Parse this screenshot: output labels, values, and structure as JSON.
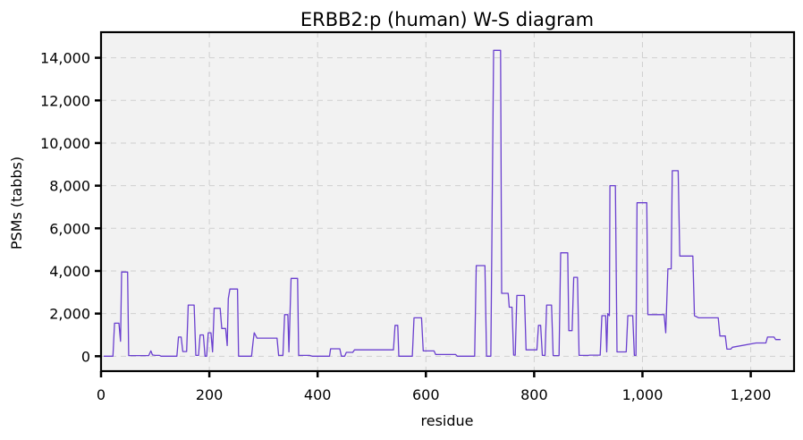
{
  "chart_data": {
    "type": "line",
    "title": "ERBB2:p (human) W-S diagram",
    "xlabel": "residue",
    "ylabel": "PSMs (tabbs)",
    "xlim": [
      0,
      1280
    ],
    "ylim": [
      -700,
      15200
    ],
    "grid": true,
    "legend": "none",
    "colors": {
      "series": "#6a3fcf",
      "grid": "#cfcfcf",
      "plot_bg": "#f2f2f2"
    },
    "x_ticks": [
      0,
      200,
      400,
      600,
      800,
      1000,
      1200
    ],
    "x_tick_labels": [
      "0",
      "200",
      "400",
      "600",
      "800",
      "1,000",
      "1,200"
    ],
    "y_ticks": [
      0,
      2000,
      4000,
      6000,
      8000,
      10000,
      12000,
      14000
    ],
    "y_tick_labels": [
      "0",
      "2,000",
      "4,000",
      "6,000",
      "8,000",
      "10,000",
      "12,000",
      "14,000"
    ],
    "series": [
      {
        "color": "#6a3fcf",
        "points": [
          [
            5,
            0
          ],
          [
            22,
            0
          ],
          [
            25,
            1550
          ],
          [
            33,
            1550
          ],
          [
            36,
            700
          ],
          [
            38,
            3950
          ],
          [
            49,
            3950
          ],
          [
            51,
            30
          ],
          [
            88,
            30
          ],
          [
            92,
            250
          ],
          [
            95,
            60
          ],
          [
            100,
            40
          ],
          [
            108,
            40
          ],
          [
            111,
            0
          ],
          [
            140,
            0
          ],
          [
            143,
            900
          ],
          [
            148,
            900
          ],
          [
            151,
            220
          ],
          [
            158,
            220
          ],
          [
            161,
            2400
          ],
          [
            172,
            2400
          ],
          [
            175,
            40
          ],
          [
            180,
            40
          ],
          [
            183,
            1000
          ],
          [
            189,
            1000
          ],
          [
            192,
            0
          ],
          [
            195,
            0
          ],
          [
            198,
            1100
          ],
          [
            203,
            1100
          ],
          [
            206,
            200
          ],
          [
            209,
            2250
          ],
          [
            220,
            2250
          ],
          [
            223,
            1300
          ],
          [
            230,
            1300
          ],
          [
            233,
            500
          ],
          [
            235,
            2700
          ],
          [
            238,
            3150
          ],
          [
            252,
            3150
          ],
          [
            254,
            0
          ],
          [
            278,
            0
          ],
          [
            281,
            700
          ],
          [
            283,
            1100
          ],
          [
            288,
            850
          ],
          [
            325,
            850
          ],
          [
            328,
            40
          ],
          [
            336,
            40
          ],
          [
            339,
            1950
          ],
          [
            345,
            1950
          ],
          [
            347,
            200
          ],
          [
            351,
            3650
          ],
          [
            363,
            3650
          ],
          [
            365,
            40
          ],
          [
            385,
            40
          ],
          [
            390,
            0
          ],
          [
            422,
            0
          ],
          [
            424,
            350
          ],
          [
            441,
            350
          ],
          [
            444,
            0
          ],
          [
            450,
            0
          ],
          [
            453,
            180
          ],
          [
            465,
            180
          ],
          [
            468,
            300
          ],
          [
            540,
            300
          ],
          [
            543,
            1450
          ],
          [
            548,
            1450
          ],
          [
            550,
            0
          ],
          [
            575,
            0
          ],
          [
            578,
            1800
          ],
          [
            592,
            1800
          ],
          [
            595,
            250
          ],
          [
            615,
            250
          ],
          [
            618,
            80
          ],
          [
            655,
            80
          ],
          [
            658,
            0
          ],
          [
            690,
            0
          ],
          [
            693,
            4250
          ],
          [
            709,
            4250
          ],
          [
            712,
            0
          ],
          [
            720,
            0
          ],
          [
            725,
            14350
          ],
          [
            738,
            14350
          ],
          [
            740,
            2950
          ],
          [
            752,
            2950
          ],
          [
            754,
            2300
          ],
          [
            759,
            2300
          ],
          [
            762,
            50
          ],
          [
            765,
            50
          ],
          [
            768,
            2850
          ],
          [
            782,
            2850
          ],
          [
            785,
            300
          ],
          [
            805,
            300
          ],
          [
            808,
            1450
          ],
          [
            812,
            1450
          ],
          [
            815,
            40
          ],
          [
            820,
            40
          ],
          [
            823,
            2400
          ],
          [
            832,
            2400
          ],
          [
            835,
            30
          ],
          [
            846,
            30
          ],
          [
            849,
            4850
          ],
          [
            862,
            4850
          ],
          [
            864,
            1200
          ],
          [
            870,
            1200
          ],
          [
            873,
            3700
          ],
          [
            880,
            3700
          ],
          [
            883,
            40
          ],
          [
            900,
            40
          ],
          [
            903,
            50
          ],
          [
            922,
            50
          ],
          [
            925,
            1900
          ],
          [
            932,
            1900
          ],
          [
            934,
            200
          ],
          [
            936,
            2000
          ],
          [
            939,
            1900
          ],
          [
            940,
            8000
          ],
          [
            950,
            8000
          ],
          [
            953,
            200
          ],
          [
            970,
            200
          ],
          [
            973,
            1900
          ],
          [
            982,
            1900
          ],
          [
            985,
            40
          ],
          [
            988,
            40
          ],
          [
            990,
            7200
          ],
          [
            1008,
            7200
          ],
          [
            1010,
            1950
          ],
          [
            1040,
            1950
          ],
          [
            1043,
            1100
          ],
          [
            1047,
            4100
          ],
          [
            1053,
            4100
          ],
          [
            1055,
            8700
          ],
          [
            1066,
            8700
          ],
          [
            1069,
            4700
          ],
          [
            1093,
            4700
          ],
          [
            1096,
            1900
          ],
          [
            1104,
            1800
          ],
          [
            1140,
            1800
          ],
          [
            1143,
            950
          ],
          [
            1153,
            950
          ],
          [
            1156,
            330
          ],
          [
            1163,
            330
          ],
          [
            1166,
            420
          ],
          [
            1210,
            620
          ],
          [
            1228,
            620
          ],
          [
            1231,
            900
          ],
          [
            1243,
            900
          ],
          [
            1246,
            780
          ],
          [
            1255,
            780
          ]
        ]
      }
    ]
  }
}
